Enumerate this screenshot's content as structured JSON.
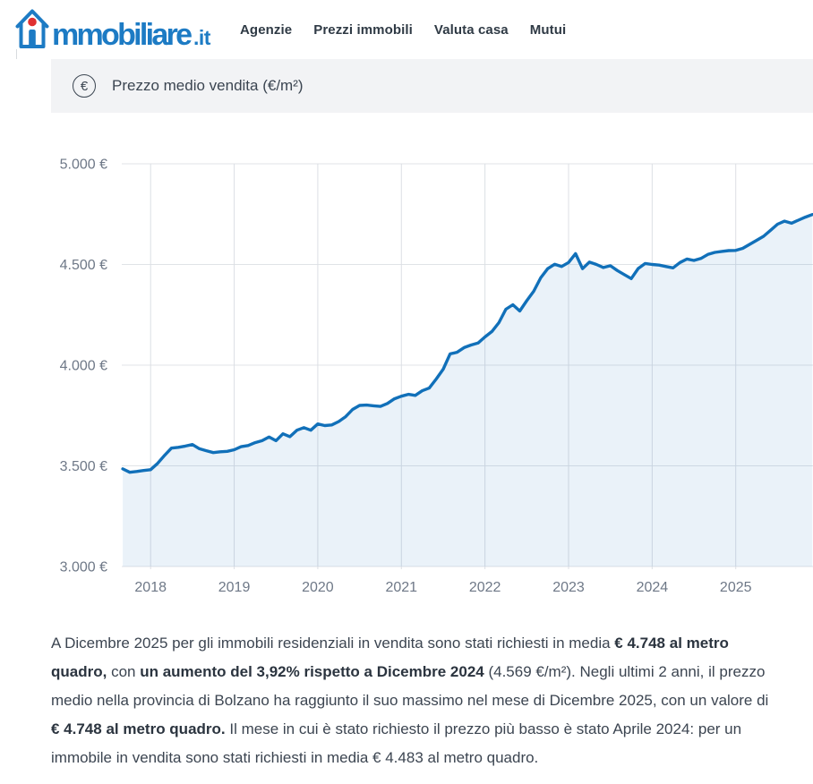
{
  "brand": {
    "logo_text": "mmobiliare",
    "logo_tld": ".it",
    "blue": "#1d7bc4",
    "red": "#e03131"
  },
  "header": {
    "nav_items": [
      {
        "label": "Agenzie"
      },
      {
        "label": "Prezzi immobili"
      },
      {
        "label": "Valuta casa"
      },
      {
        "label": "Mutui"
      }
    ]
  },
  "metric_bar": {
    "icon": "euro-circle-icon",
    "euro_glyph": "€",
    "label": "Prezzo medio vendita (€/m²)"
  },
  "chart_data": {
    "type": "area",
    "title": "Prezzo medio vendita (€/m²)",
    "x_tick_labels": [
      "2018",
      "2019",
      "2020",
      "2021",
      "2022",
      "2023",
      "2024",
      "2025"
    ],
    "y_tick_labels": [
      "5.000 €",
      "4.500 €",
      "4.000 €",
      "3.500 €",
      "3.000 €"
    ],
    "y_tick_values": [
      5000,
      4500,
      4000,
      3500,
      3000
    ],
    "ylim": [
      3000,
      5000
    ],
    "x_start_month": "2017-09",
    "x_end_month": "2025-12",
    "frequency": "monthly",
    "unit": "€/m²",
    "grid": true,
    "legend": false,
    "line_color": "#1170b9",
    "fill_color": "rgba(23,115,187,0.09)",
    "values": [
      3485,
      3468,
      3472,
      3477,
      3481,
      3512,
      3552,
      3588,
      3592,
      3598,
      3606,
      3585,
      3575,
      3566,
      3570,
      3572,
      3580,
      3595,
      3601,
      3615,
      3625,
      3643,
      3625,
      3659,
      3645,
      3677,
      3690,
      3677,
      3708,
      3700,
      3703,
      3720,
      3744,
      3780,
      3800,
      3802,
      3798,
      3795,
      3810,
      3833,
      3846,
      3855,
      3850,
      3873,
      3886,
      3931,
      3980,
      4056,
      4064,
      4087,
      4100,
      4110,
      4140,
      4167,
      4211,
      4278,
      4300,
      4269,
      4320,
      4367,
      4434,
      4479,
      4501,
      4490,
      4510,
      4554,
      4479,
      4512,
      4500,
      4485,
      4494,
      4470,
      4450,
      4430,
      4480,
      4505,
      4500,
      4497,
      4490,
      4483,
      4510,
      4527,
      4520,
      4530,
      4550,
      4560,
      4565,
      4569,
      4570,
      4580,
      4600,
      4620,
      4640,
      4670,
      4700,
      4715,
      4705,
      4720,
      4735,
      4748
    ],
    "highlights": {
      "max": {
        "month": "Dicembre 2025",
        "value": 4748
      },
      "min_last_2_years": {
        "month": "Aprile 2024",
        "value": 4483
      },
      "dicembre_2024": 4569,
      "yoy_change": "3,92%"
    }
  },
  "summary": {
    "segments": [
      {
        "text": "A Dicembre 2025 per gli immobili residenziali in vendita sono stati richiesti in media ",
        "bold": false
      },
      {
        "text": "€ 4.748 al metro quadro,",
        "bold": true
      },
      {
        "text": " con ",
        "bold": false
      },
      {
        "text": "un aumento del 3,92% rispetto a Dicembre 2024",
        "bold": true
      },
      {
        "text": " (4.569 €/m²). Negli ultimi 2 anni, il prezzo medio nella provincia di Bolzano ha raggiunto il suo massimo nel mese di Dicembre 2025, con un valore di ",
        "bold": false
      },
      {
        "text": "€ 4.748 al metro quadro.",
        "bold": true
      },
      {
        "text": " Il mese in cui è stato richiesto il prezzo più basso è stato Aprile 2024: per un immobile in vendita sono stati richiesti in media € 4.483 al metro quadro.",
        "bold": false
      }
    ]
  }
}
